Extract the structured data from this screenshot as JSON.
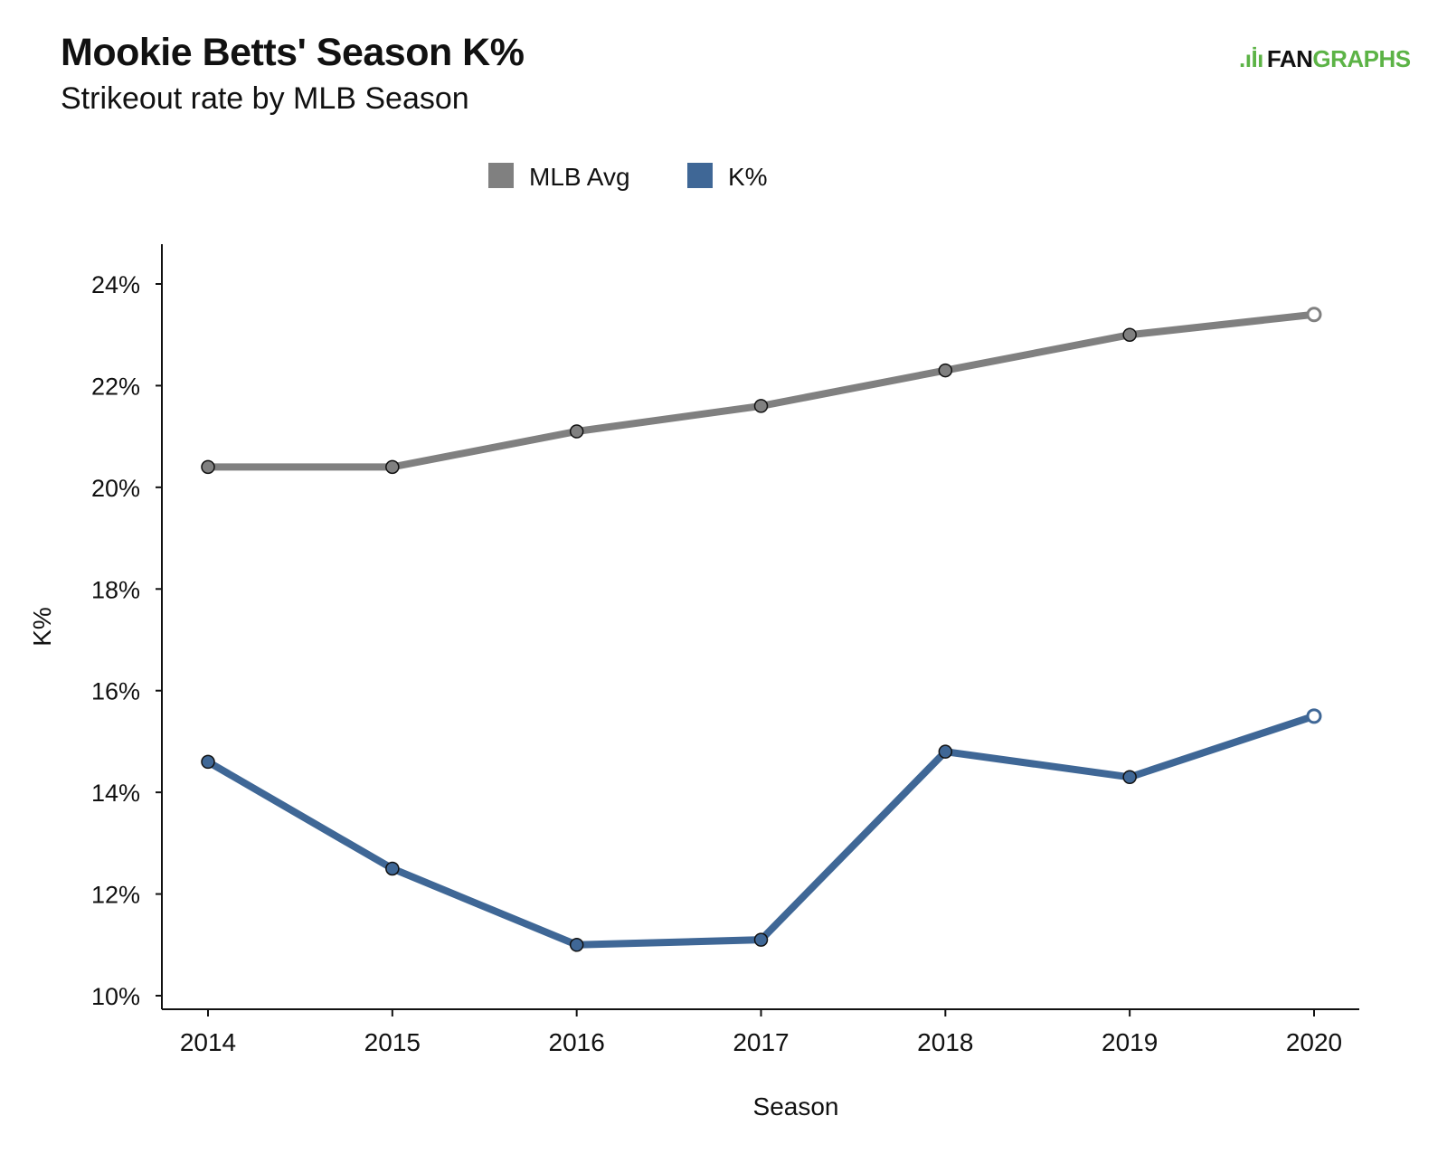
{
  "title": "Mookie Betts' Season K%",
  "subtitle": "Strikeout rate by MLB Season",
  "logo": {
    "part1": "FAN",
    "part2": "GRAPHS"
  },
  "chart_data": {
    "type": "line",
    "title": "Mookie Betts' Season K%",
    "subtitle": "Strikeout rate by MLB Season",
    "xlabel": "Season",
    "ylabel": "K%",
    "x": [
      2014,
      2015,
      2016,
      2017,
      2018,
      2019,
      2020
    ],
    "x_tick_labels": [
      "2014",
      "2015",
      "2016",
      "2017",
      "2018",
      "2019",
      "2020"
    ],
    "ylim": [
      10,
      24
    ],
    "y_ticks": [
      10,
      12,
      14,
      16,
      18,
      20,
      22,
      24
    ],
    "y_tick_labels": [
      "10%",
      "12%",
      "14%",
      "16%",
      "18%",
      "20%",
      "22%",
      "24%"
    ],
    "legend_placement": "top-center",
    "grid": false,
    "series": [
      {
        "name": "MLB Avg",
        "color": "#808080",
        "values": [
          20.4,
          20.4,
          21.1,
          21.6,
          22.3,
          23.0,
          23.4
        ]
      },
      {
        "name": "K%",
        "color": "#3f6796",
        "values": [
          14.6,
          12.5,
          11.0,
          11.1,
          14.8,
          14.3,
          15.5
        ]
      }
    ]
  }
}
